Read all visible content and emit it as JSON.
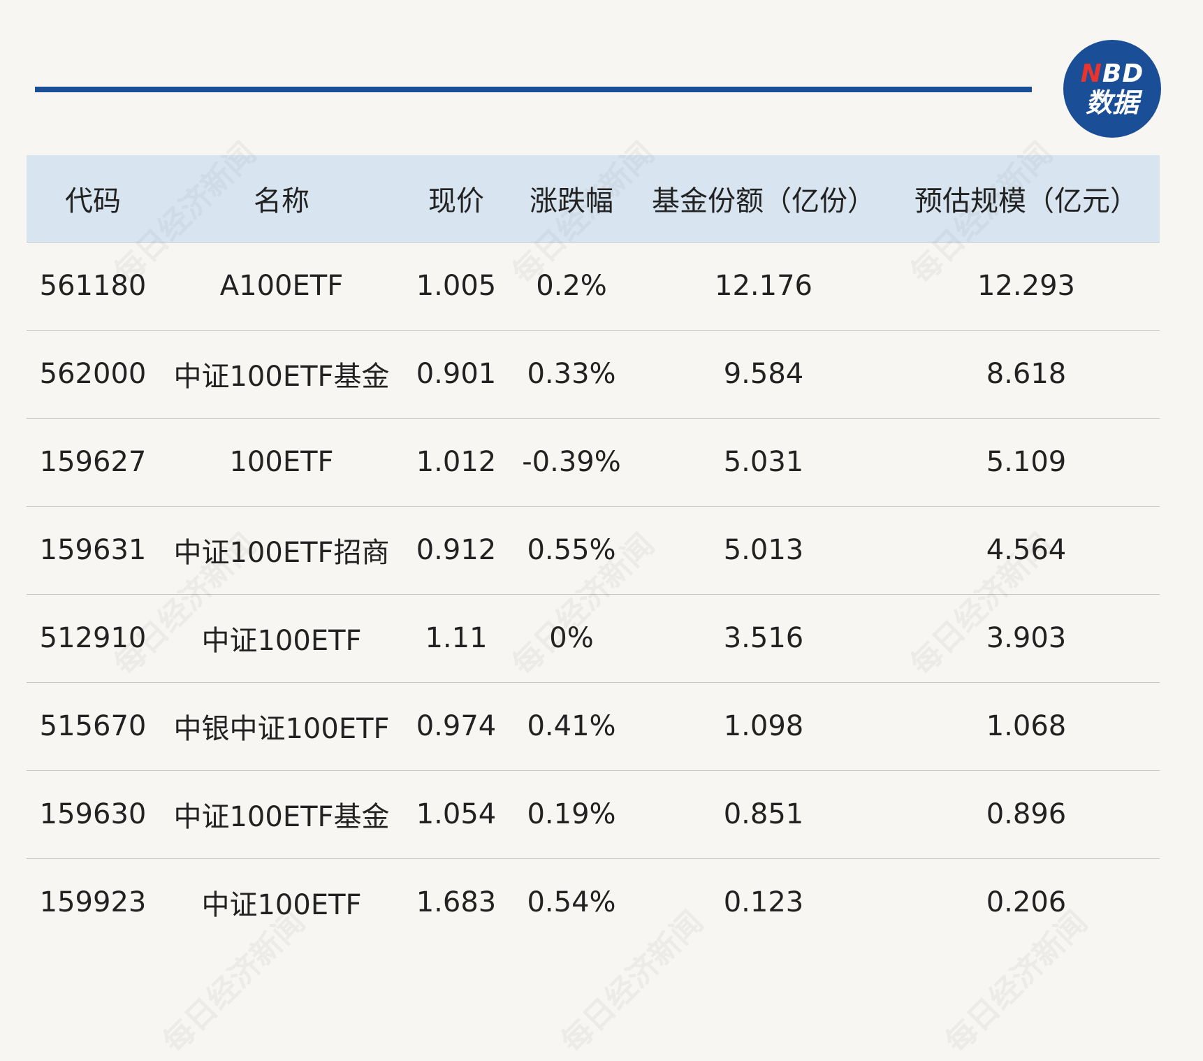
{
  "logo": {
    "line1_accent": "N",
    "line1_rest": "BD",
    "line2": "数据"
  },
  "watermark": "每日经济新闻",
  "table": {
    "headers": [
      "代码",
      "名称",
      "现价",
      "涨跌幅",
      "基金份额（亿份）",
      "预估规模（亿元）"
    ],
    "rows": [
      [
        "561180",
        "A100ETF",
        "1.005",
        "0.2%",
        "12.176",
        "12.293"
      ],
      [
        "562000",
        "中证100ETF基金",
        "0.901",
        "0.33%",
        "9.584",
        "8.618"
      ],
      [
        "159627",
        "100ETF",
        "1.012",
        "-0.39%",
        "5.031",
        "5.109"
      ],
      [
        "159631",
        "中证100ETF招商",
        "0.912",
        "0.55%",
        "5.013",
        "4.564"
      ],
      [
        "512910",
        "中证100ETF",
        "1.11",
        "0%",
        "3.516",
        "3.903"
      ],
      [
        "515670",
        "中银中证100ETF",
        "0.974",
        "0.41%",
        "1.098",
        "1.068"
      ],
      [
        "159630",
        "中证100ETF基金",
        "1.054",
        "0.19%",
        "0.851",
        "0.896"
      ],
      [
        "159923",
        "中证100ETF",
        "1.683",
        "0.54%",
        "0.123",
        "0.206"
      ]
    ]
  },
  "colors": {
    "accent": "#1a4e97",
    "header_bg": "#d8e5f1",
    "background": "#f8f6f2",
    "logo_n": "#e8342c"
  }
}
